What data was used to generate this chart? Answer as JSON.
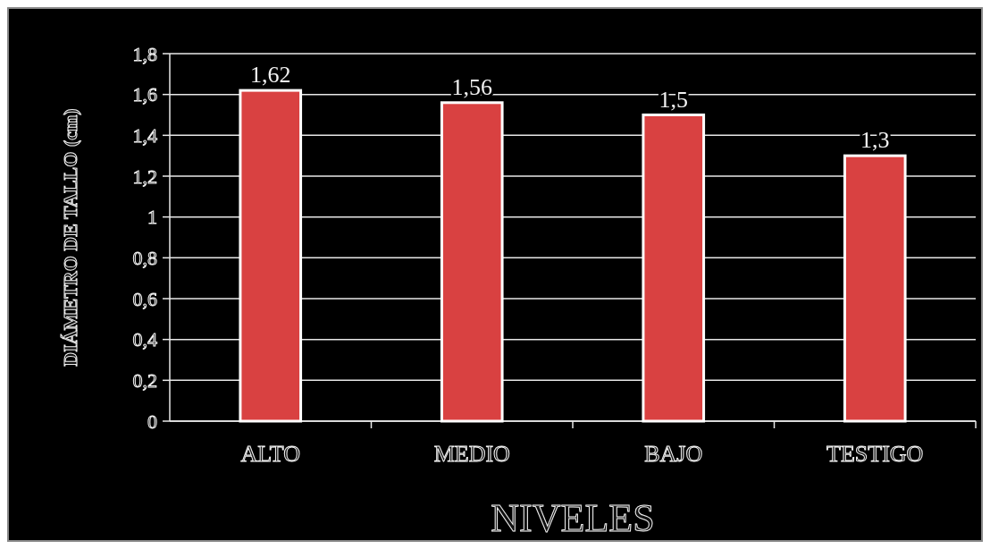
{
  "chart_data": {
    "type": "bar",
    "xlabel": "NIVELES",
    "ylabel": "DIÁMETRO DE TALLO (cm)",
    "categories": [
      "ALTO",
      "MEDIO",
      "BAJO",
      "TESTIGO"
    ],
    "values": [
      1.62,
      1.56,
      1.5,
      1.3
    ],
    "color": "#d94141",
    "ylim": [
      0,
      1.8
    ],
    "yticks": [
      0,
      {
        "value": 0.2,
        "label": "0,2"
      },
      {
        "value": 0.4,
        "label": "0,4"
      },
      {
        "value": 0.6,
        "label": "0,6"
      },
      {
        "value": 0.8,
        "label": "0,8"
      },
      1,
      {
        "value": 1.2,
        "label": "1,2"
      },
      {
        "value": 1.4,
        "label": "1,4"
      },
      {
        "value": 1.6,
        "label": "1,6"
      },
      {
        "value": 1.8,
        "label": "1,8"
      }
    ],
    "value_labels": [
      "1,62",
      "1,56",
      "1,5",
      "1,3"
    ],
    "grid": "y"
  }
}
